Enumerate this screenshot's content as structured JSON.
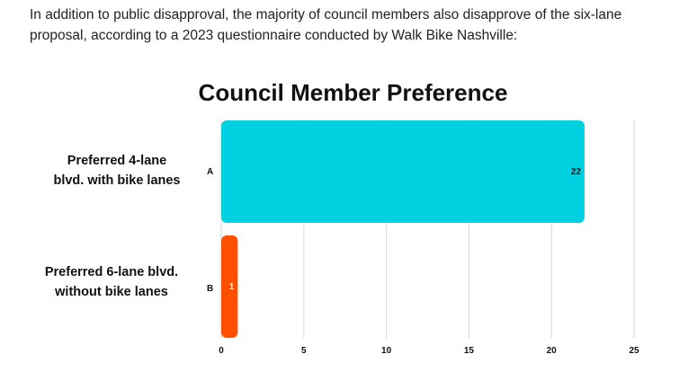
{
  "intro_text": "In addition to public disapproval, the majority of council members also disapprove of the six-lane proposal, according to a 2023 questionnaire conducted by Walk Bike Nashville:",
  "chart_data": {
    "type": "bar",
    "orientation": "horizontal",
    "title": "Council Member Preference",
    "categories": [
      "Preferred 4-lane blvd. with bike lanes",
      "Preferred 6-lane blvd. without bike lanes"
    ],
    "category_line_1": [
      "Preferred 4-lane",
      "Preferred 6-lane blvd."
    ],
    "category_line_2": [
      "blvd. with bike lanes",
      "without bike lanes"
    ],
    "category_codes": [
      "A",
      "B"
    ],
    "values": [
      22,
      1
    ],
    "value_labels": [
      "22",
      "1"
    ],
    "bar_colors": [
      "#00d1e0",
      "#ff5000"
    ],
    "xlim": [
      0,
      25
    ],
    "x_ticks": [
      0,
      5,
      10,
      15,
      20,
      25
    ],
    "grid": true,
    "legend": "none"
  }
}
